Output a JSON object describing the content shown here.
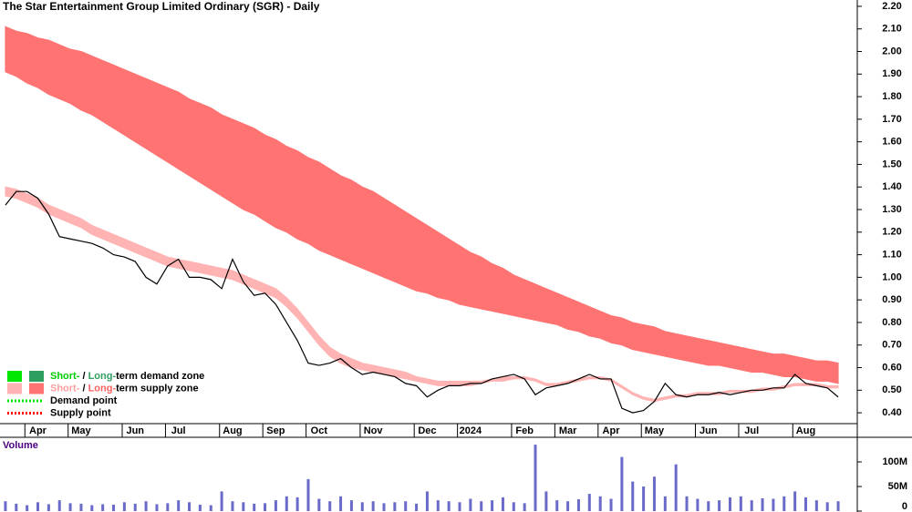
{
  "chart_data": {
    "type": "stock",
    "title": "The Star Entertainment Group Limited Ordinary (SGR) - Daily",
    "categories": [
      null,
      null,
      null,
      "Apr",
      null,
      null,
      null,
      "May",
      null,
      null,
      null,
      null,
      "Jun",
      null,
      null,
      null,
      "Jul",
      null,
      null,
      null,
      null,
      "Aug",
      null,
      null,
      null,
      "Sep",
      null,
      null,
      null,
      "Oct",
      null,
      null,
      null,
      null,
      "Nov",
      null,
      null,
      null,
      null,
      "Dec",
      null,
      null,
      null,
      "2024",
      null,
      null,
      null,
      null,
      "Feb",
      null,
      null,
      null,
      "Mar",
      null,
      null,
      null,
      "Apr",
      null,
      null,
      null,
      "May",
      null,
      null,
      null,
      null,
      "Jun",
      null,
      null,
      null,
      "Jul",
      null,
      null,
      null,
      null,
      "Aug",
      null,
      null,
      null
    ],
    "ylim": [
      0.352,
      2.228
    ],
    "yticks": [
      {
        "value": 0.4,
        "label": "0.40"
      },
      {
        "value": 0.5,
        "label": "0.50"
      },
      {
        "value": 0.6,
        "label": "0.60"
      },
      {
        "value": 0.7,
        "label": "0.70"
      },
      {
        "value": 0.8,
        "label": "0.80"
      },
      {
        "value": 0.9,
        "label": "0.90"
      },
      {
        "value": 1.0,
        "label": "1.00"
      },
      {
        "value": 1.1,
        "label": "1.10"
      },
      {
        "value": 1.2,
        "label": "1.20"
      },
      {
        "value": 1.3,
        "label": "1.30"
      },
      {
        "value": 1.4,
        "label": "1.40"
      },
      {
        "value": 1.5,
        "label": "1.50"
      },
      {
        "value": 1.6,
        "label": "1.60"
      },
      {
        "value": 1.7,
        "label": "1.70"
      },
      {
        "value": 1.8,
        "label": "1.80"
      },
      {
        "value": 1.9,
        "label": "1.90"
      },
      {
        "value": 2.0,
        "label": "2.00"
      },
      {
        "value": 2.1,
        "label": "2.10"
      },
      {
        "value": 2.2,
        "label": "2.20"
      }
    ],
    "price": {
      "color": "#000000",
      "values": [
        1.32,
        1.38,
        1.38,
        1.35,
        1.28,
        1.18,
        1.17,
        1.16,
        1.15,
        1.13,
        1.1,
        1.09,
        1.07,
        1.0,
        0.97,
        1.05,
        1.08,
        1.0,
        1.0,
        0.99,
        0.95,
        1.08,
        0.98,
        0.92,
        0.93,
        0.88,
        0.8,
        0.72,
        0.62,
        0.61,
        0.62,
        0.64,
        0.6,
        0.57,
        0.58,
        0.57,
        0.56,
        0.53,
        0.52,
        0.47,
        0.5,
        0.52,
        0.52,
        0.53,
        0.53,
        0.55,
        0.56,
        0.57,
        0.55,
        0.48,
        0.51,
        0.52,
        0.53,
        0.55,
        0.57,
        0.55,
        0.55,
        0.42,
        0.4,
        0.41,
        0.45,
        0.53,
        0.48,
        0.47,
        0.48,
        0.48,
        0.49,
        0.48,
        0.49,
        0.5,
        0.5,
        0.51,
        0.51,
        0.57,
        0.53,
        0.52,
        0.51,
        0.47
      ]
    },
    "long_term_supply_zone": {
      "color": "#ff7373",
      "upper": [
        2.11,
        2.09,
        2.08,
        2.06,
        2.05,
        2.03,
        2.01,
        2.0,
        1.98,
        1.96,
        1.94,
        1.92,
        1.9,
        1.88,
        1.86,
        1.84,
        1.82,
        1.79,
        1.77,
        1.75,
        1.72,
        1.7,
        1.68,
        1.66,
        1.63,
        1.61,
        1.58,
        1.56,
        1.53,
        1.51,
        1.48,
        1.45,
        1.43,
        1.4,
        1.38,
        1.35,
        1.32,
        1.29,
        1.26,
        1.23,
        1.2,
        1.17,
        1.14,
        1.11,
        1.09,
        1.06,
        1.04,
        1.01,
        0.99,
        0.97,
        0.95,
        0.93,
        0.91,
        0.89,
        0.87,
        0.85,
        0.83,
        0.82,
        0.8,
        0.79,
        0.78,
        0.76,
        0.75,
        0.74,
        0.73,
        0.72,
        0.71,
        0.7,
        0.69,
        0.68,
        0.67,
        0.66,
        0.66,
        0.65,
        0.64,
        0.63,
        0.63,
        0.62
      ],
      "lower": [
        1.91,
        1.89,
        1.86,
        1.84,
        1.81,
        1.79,
        1.77,
        1.74,
        1.72,
        1.69,
        1.66,
        1.63,
        1.6,
        1.57,
        1.54,
        1.51,
        1.48,
        1.45,
        1.42,
        1.39,
        1.36,
        1.33,
        1.3,
        1.28,
        1.25,
        1.22,
        1.2,
        1.17,
        1.15,
        1.12,
        1.1,
        1.08,
        1.06,
        1.04,
        1.02,
        1.0,
        0.98,
        0.96,
        0.94,
        0.93,
        0.91,
        0.9,
        0.88,
        0.87,
        0.86,
        0.85,
        0.84,
        0.83,
        0.82,
        0.81,
        0.8,
        0.79,
        0.77,
        0.76,
        0.74,
        0.73,
        0.71,
        0.7,
        0.68,
        0.67,
        0.66,
        0.65,
        0.64,
        0.63,
        0.62,
        0.61,
        0.61,
        0.6,
        0.59,
        0.58,
        0.58,
        0.57,
        0.56,
        0.56,
        0.55,
        0.54,
        0.54,
        0.53
      ]
    },
    "short_term_supply_zone": {
      "color": "#ffb3b3",
      "upper": [
        1.4,
        1.39,
        1.37,
        1.35,
        1.32,
        1.3,
        1.28,
        1.26,
        1.23,
        1.21,
        1.19,
        1.17,
        1.15,
        1.13,
        1.11,
        1.09,
        1.08,
        1.07,
        1.06,
        1.05,
        1.04,
        1.03,
        1.01,
        0.99,
        0.97,
        0.95,
        0.91,
        0.86,
        0.8,
        0.74,
        0.69,
        0.66,
        0.64,
        0.62,
        0.61,
        0.6,
        0.59,
        0.58,
        0.56,
        0.55,
        0.54,
        0.54,
        0.54,
        0.54,
        0.54,
        0.55,
        0.56,
        0.56,
        0.56,
        0.55,
        0.53,
        0.53,
        0.54,
        0.55,
        0.56,
        0.56,
        0.55,
        0.52,
        0.49,
        0.47,
        0.46,
        0.47,
        0.48,
        0.48,
        0.49,
        0.49,
        0.49,
        0.5,
        0.5,
        0.5,
        0.51,
        0.51,
        0.52,
        0.53,
        0.53,
        0.53,
        0.52,
        0.52
      ],
      "lower": [
        1.36,
        1.35,
        1.33,
        1.31,
        1.28,
        1.26,
        1.24,
        1.22,
        1.19,
        1.17,
        1.15,
        1.13,
        1.11,
        1.09,
        1.07,
        1.05,
        1.04,
        1.03,
        1.02,
        1.01,
        1.0,
        0.99,
        0.97,
        0.95,
        0.93,
        0.91,
        0.87,
        0.82,
        0.76,
        0.7,
        0.65,
        0.62,
        0.6,
        0.59,
        0.58,
        0.57,
        0.56,
        0.55,
        0.54,
        0.53,
        0.52,
        0.52,
        0.52,
        0.52,
        0.53,
        0.54,
        0.54,
        0.55,
        0.55,
        0.54,
        0.52,
        0.52,
        0.53,
        0.54,
        0.55,
        0.55,
        0.54,
        0.51,
        0.48,
        0.46,
        0.45,
        0.46,
        0.47,
        0.47,
        0.48,
        0.48,
        0.48,
        0.49,
        0.49,
        0.49,
        0.5,
        0.5,
        0.51,
        0.52,
        0.52,
        0.52,
        0.51,
        0.51
      ]
    },
    "volume": {
      "label": "Volume",
      "color": "#6a6ac8",
      "ylim": [
        0,
        150000000
      ],
      "yticks": [
        0,
        {
          "value": 50000000,
          "label": "50M"
        },
        {
          "value": 100000000,
          "label": "100M"
        }
      ],
      "values": [
        20000000,
        15000000,
        12000000,
        18000000,
        14000000,
        22000000,
        16000000,
        15000000,
        12000000,
        14000000,
        13000000,
        18000000,
        15000000,
        20000000,
        14000000,
        16000000,
        22000000,
        18000000,
        13000000,
        12000000,
        40000000,
        20000000,
        18000000,
        15000000,
        16000000,
        22000000,
        30000000,
        28000000,
        65000000,
        25000000,
        20000000,
        30000000,
        22000000,
        18000000,
        20000000,
        16000000,
        18000000,
        20000000,
        15000000,
        40000000,
        22000000,
        20000000,
        18000000,
        25000000,
        20000000,
        22000000,
        28000000,
        18000000,
        16000000,
        135000000,
        40000000,
        22000000,
        20000000,
        24000000,
        35000000,
        30000000,
        25000000,
        110000000,
        60000000,
        50000000,
        70000000,
        30000000,
        95000000,
        30000000,
        25000000,
        20000000,
        22000000,
        28000000,
        30000000,
        22000000,
        26000000,
        25000000,
        30000000,
        40000000,
        28000000,
        22000000,
        18000000,
        20000000
      ]
    },
    "legend": [
      {
        "style": "zone",
        "swatches": [
          "#00e600",
          "#2e9e5e"
        ],
        "parts": [
          "Short-",
          " / ",
          "Long-",
          "term demand zone"
        ],
        "part_colors": [
          "#00cc00",
          "#000000",
          "#2e9e5e",
          "#000000"
        ]
      },
      {
        "style": "zone",
        "swatches": [
          "#ffb3b3",
          "#ff7373"
        ],
        "parts": [
          "Short-",
          " / ",
          "Long-",
          "term supply zone"
        ],
        "part_colors": [
          "#ff9f9f",
          "#000000",
          "#ff6060",
          "#000000"
        ]
      },
      {
        "style": "dotted",
        "swatches": [
          "#00e600"
        ],
        "parts": [
          "Demand point"
        ],
        "part_colors": [
          "#000000"
        ]
      },
      {
        "style": "dotted",
        "swatches": [
          "#ff0000"
        ],
        "parts": [
          "Supply point"
        ],
        "part_colors": [
          "#000000"
        ]
      }
    ]
  }
}
